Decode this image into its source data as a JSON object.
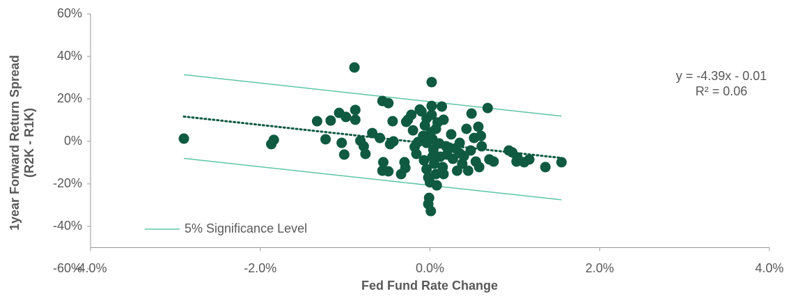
{
  "chart_data": {
    "type": "scatter",
    "xlabel": "Fed Fund Rate Change",
    "ylabel": [
      "1year Forward Return Spread",
      "(R2K - R1K)"
    ],
    "xlim": [
      -4,
      4
    ],
    "ylim": [
      -60,
      60
    ],
    "x_axis_crosses_y": -50,
    "xticks": [
      {
        "value": -4,
        "label": "-4.0%"
      },
      {
        "value": -2,
        "label": "-2.0%"
      },
      {
        "value": 0,
        "label": "0.0%"
      },
      {
        "value": 2,
        "label": "2.0%"
      },
      {
        "value": 4,
        "label": "4.0%"
      }
    ],
    "yticks": [
      {
        "value": -60,
        "label": "-60%"
      },
      {
        "value": -40,
        "label": "-40%"
      },
      {
        "value": -20,
        "label": "-20%"
      },
      {
        "value": 0,
        "label": "0%"
      },
      {
        "value": 20,
        "label": "20%"
      },
      {
        "value": 40,
        "label": "40%"
      },
      {
        "value": 60,
        "label": "60%"
      }
    ],
    "color": "#0f5a41",
    "x": [
      -2.9,
      -0.89,
      0.02,
      -1.87,
      -1.84,
      -1.33,
      -1.23,
      -1.17,
      -1.07,
      -1.04,
      -1.01,
      -0.99,
      -0.88,
      -0.88,
      -0.82,
      -0.78,
      -0.76,
      -0.68,
      -0.59,
      -0.55,
      -0.56,
      -0.56,
      -0.49,
      -0.49,
      -0.47,
      -0.44,
      -0.43,
      -0.34,
      -0.3,
      -0.29,
      -0.28,
      -0.26,
      -0.22,
      -0.2,
      -0.18,
      -0.16,
      -0.14,
      -0.12,
      -0.1,
      -0.08,
      -0.07,
      -0.06,
      -0.04,
      -0.04,
      -0.02,
      -0.02,
      -0.01,
      0.01,
      0.0,
      0.02,
      0.02,
      0.03,
      0.04,
      0.05,
      0.07,
      0.07,
      0.08,
      0.09,
      0.11,
      0.12,
      0.14,
      0.15,
      0.16,
      0.16,
      0.19,
      0.2,
      0.23,
      0.25,
      0.27,
      0.3,
      0.32,
      0.35,
      0.38,
      0.4,
      0.43,
      0.45,
      0.48,
      0.49,
      0.52,
      0.54,
      0.57,
      0.58,
      0.6,
      0.61,
      0.68,
      0.7,
      0.75,
      0.93,
      0.97,
      1.02,
      1.03,
      1.11,
      1.17,
      1.36,
      1.55,
      0.01,
      -0.04,
      0.03,
      0.35
    ],
    "values": [
      1.3,
      34.8,
      27.9,
      -1.3,
      0.7,
      9.5,
      1.0,
      9.8,
      13.4,
      -0.7,
      -6.2,
      11.5,
      14.8,
      10.2,
      0.3,
      -2.3,
      -5.9,
      3.9,
      1.6,
      -9.8,
      -13.8,
      19.0,
      18.0,
      -14.1,
      -1.3,
      9.5,
      0.0,
      -15.4,
      -9.8,
      -12.5,
      9.2,
      10.2,
      12.5,
      5.2,
      -2.6,
      -5.9,
      -0.3,
      15.0,
      14.1,
      2.6,
      -8.9,
      7.5,
      10.8,
      -13.1,
      -17.0,
      -29.5,
      -26.6,
      -32.8,
      -19.3,
      16.7,
      12.5,
      1.0,
      -3.9,
      -10.5,
      5.9,
      -15.4,
      -20.7,
      8.9,
      -1.0,
      -7.2,
      16.4,
      -12.1,
      10.2,
      -15.4,
      -2.3,
      -6.2,
      -3.0,
      3.3,
      -8.2,
      -3.3,
      -13.8,
      -0.7,
      -10.5,
      -6.9,
      5.9,
      -13.8,
      -4.3,
      13.1,
      1.6,
      -9.5,
      6.9,
      -12.1,
      2.6,
      -2.3,
      15.7,
      -8.5,
      -9.5,
      -4.3,
      -5.2,
      -9.5,
      -7.5,
      -9.8,
      -8.5,
      -12.1,
      -9.8,
      4.3,
      -0.7,
      -7.2,
      -5.6
    ],
    "trendline": {
      "x": [
        -2.9,
        1.55
      ],
      "values": [
        11.7,
        -7.8
      ],
      "color": "#0f5a41"
    },
    "series": [
      {
        "name": "5% Significance Level",
        "color": "#5ec5a6",
        "x": [
          -2.9,
          1.55
        ],
        "values": [
          31.4,
          11.9
        ]
      },
      {
        "color": "#5ec5a6",
        "x": [
          -2.9,
          1.55
        ],
        "values": [
          -8.0,
          -27.5
        ]
      }
    ],
    "annotations": [
      "y = -4.39x - 0.01",
      "R² = 0.06"
    ]
  }
}
